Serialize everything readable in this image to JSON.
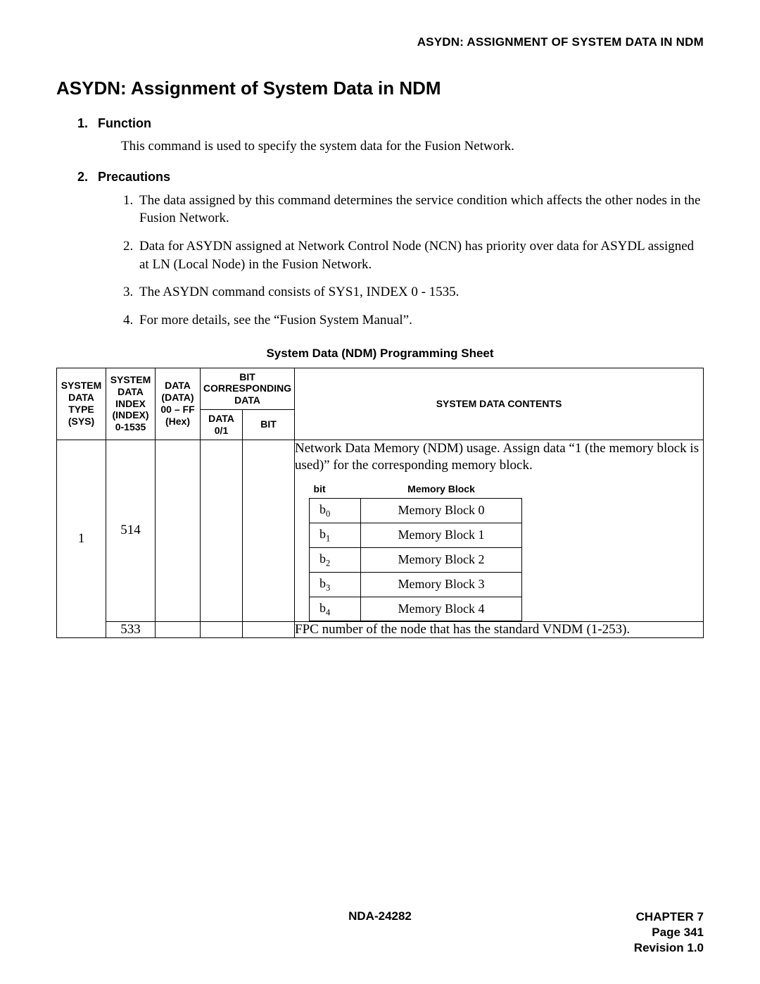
{
  "header": {
    "right": "ASYDN: ASSIGNMENT OF SYSTEM DATA IN NDM"
  },
  "title": "ASYDN: Assignment of System Data in NDM",
  "sections": {
    "function": {
      "num": "1.",
      "heading": "Function",
      "text": "This command is used to specify the system data for the Fusion Network."
    },
    "precautions": {
      "num": "2.",
      "heading": "Precautions",
      "items": [
        "The data assigned by this command determines the service condition which affects the other nodes in the Fusion Network.",
        "Data for ASYDN assigned at Network Control Node (NCN) has priority over data for ASYDL assigned at LN (Local Node) in the Fusion Network.",
        "The ASYDN command consists of SYS1, INDEX 0 - 1535.",
        "For more details, see the “Fusion System Manual”."
      ]
    }
  },
  "table": {
    "caption": "System Data (NDM) Programming Sheet",
    "headers": {
      "sys": "SYSTEM DATA TYPE (SYS)",
      "index": "SYSTEM DATA INDEX (INDEX) 0-1535",
      "data": "DATA (DATA) 00 – FF (Hex)",
      "bitgroup": "BIT CORRESPONDING DATA",
      "data01": "DATA 0/1",
      "bit": "BIT",
      "contents": "SYSTEM DATA CONTENTS"
    },
    "rows": [
      {
        "sys": "1",
        "index": "514",
        "content_intro": "Network Data Memory (NDM) usage. Assign data “1 (the memory block is used)” for the corresponding memory block.",
        "inner_headers": {
          "bit": "bit",
          "mb": "Memory Block"
        },
        "inner_rows": [
          {
            "bit_base": "b",
            "bit_sub": "0",
            "mb": "Memory Block 0"
          },
          {
            "bit_base": "b",
            "bit_sub": "1",
            "mb": "Memory Block 1"
          },
          {
            "bit_base": "b",
            "bit_sub": "2",
            "mb": "Memory Block 2"
          },
          {
            "bit_base": "b",
            "bit_sub": "3",
            "mb": "Memory Block 3"
          },
          {
            "bit_base": "b",
            "bit_sub": "4",
            "mb": "Memory Block 4"
          }
        ]
      },
      {
        "index": "533",
        "content": "FPC number of the node that has the standard VNDM (1-253)."
      }
    ]
  },
  "footer": {
    "center": "NDA-24282",
    "right1": "CHAPTER 7",
    "right2": "Page 341",
    "right3": "Revision 1.0"
  }
}
